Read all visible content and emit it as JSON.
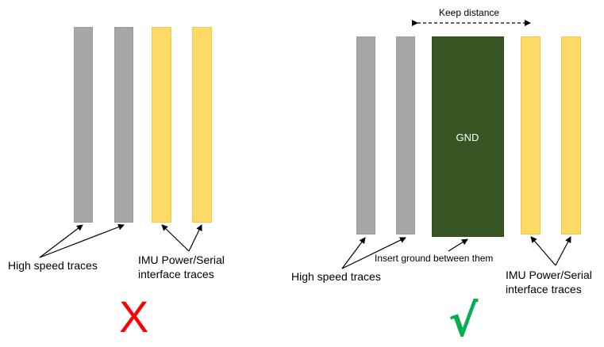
{
  "left_panel": {
    "high_speed_label": "High speed traces",
    "imu_label_line1": "IMU Power/Serial",
    "imu_label_line2": "interface traces",
    "verdict_mark": "X"
  },
  "right_panel": {
    "keep_distance_label": "Keep distance",
    "gnd_label": "GND",
    "insert_ground_label": "Insert ground between them",
    "high_speed_label": "High speed traces",
    "imu_label_line1": "IMU Power/Serial",
    "imu_label_line2": "interface traces",
    "verdict_mark": "√"
  },
  "colors": {
    "high_speed_trace": "#a6a6a6",
    "imu_trace": "#ffd966",
    "ground_plane": "#375623",
    "wrong_mark": "#ff0000",
    "correct_mark": "#00b050"
  }
}
